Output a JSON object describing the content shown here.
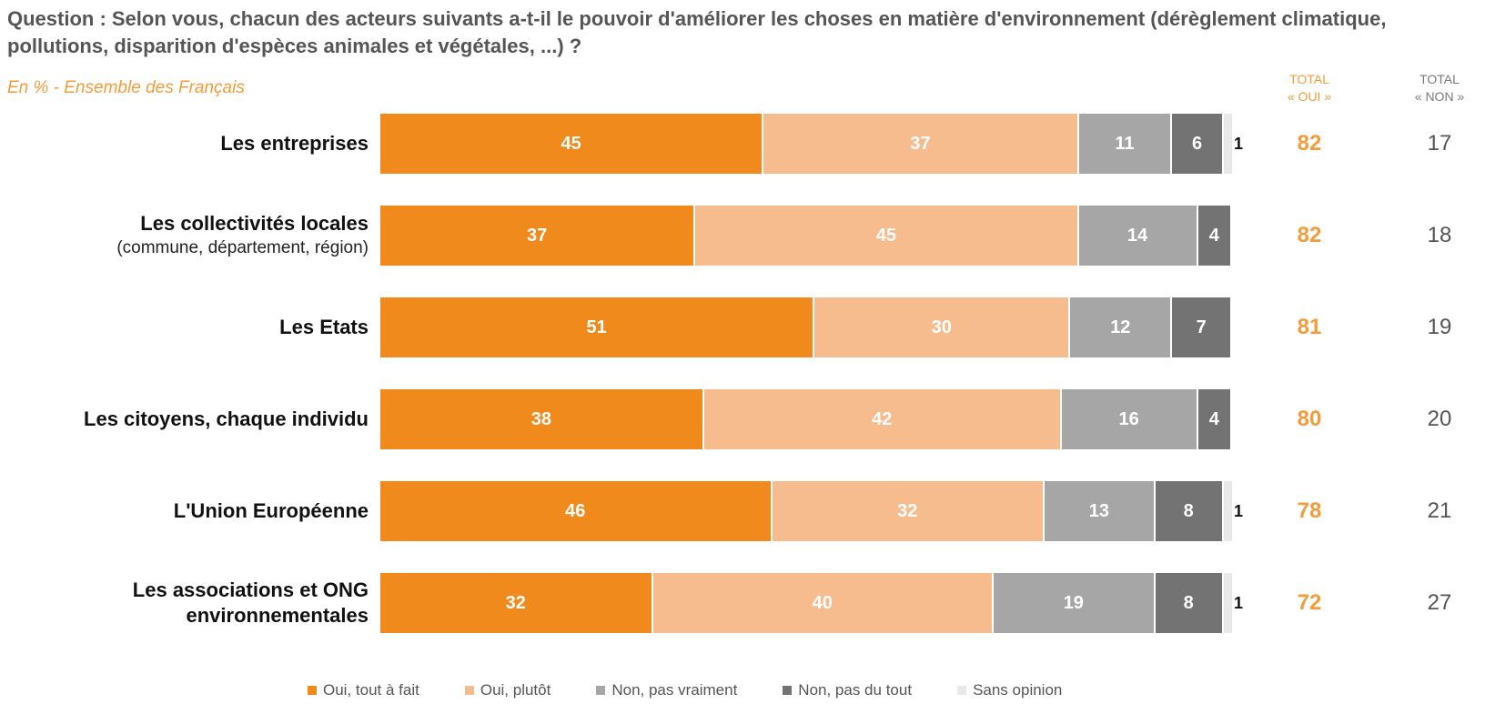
{
  "header": {
    "question": "Question : Selon vous, chacun des acteurs suivants a-t-il le pouvoir d'améliorer les choses en matière d'environnement (dérèglement climatique, pollutions, disparition d'espèces animales et végétales, ...) ?",
    "subtitle": "En % - Ensemble des Français",
    "total_oui_header": [
      "TOTAL",
      "« OUI »"
    ],
    "total_non_header": [
      "TOTAL",
      "« NON »"
    ]
  },
  "chart_data": {
    "type": "bar",
    "orientation": "horizontal",
    "stacked": true,
    "xlim": [
      0,
      100
    ],
    "categories": [
      {
        "label": "Les entreprises",
        "sublabel": ""
      },
      {
        "label": "Les collectivités locales",
        "sublabel": "(commune, département, région)"
      },
      {
        "label": "Les Etats",
        "sublabel": ""
      },
      {
        "label": "Les citoyens, chaque individu",
        "sublabel": ""
      },
      {
        "label": "L'Union Européenne",
        "sublabel": ""
      },
      {
        "label": "Les associations et ONG",
        "sublabel": "environnementales"
      }
    ],
    "series": [
      {
        "name": "Oui, tout à fait",
        "color": "#F08A1C",
        "values": [
          45,
          37,
          51,
          38,
          46,
          32
        ]
      },
      {
        "name": "Oui, plutôt",
        "color": "#F7BC8E",
        "values": [
          37,
          45,
          30,
          42,
          32,
          40
        ]
      },
      {
        "name": "Non, pas vraiment",
        "color": "#A6A6A6",
        "values": [
          11,
          14,
          12,
          16,
          13,
          19
        ]
      },
      {
        "name": "Non, pas du tout",
        "color": "#737373",
        "values": [
          6,
          4,
          7,
          4,
          8,
          8
        ]
      },
      {
        "name": "Sans opinion",
        "color": "#E8E8E8",
        "values": [
          1,
          0,
          0,
          0,
          1,
          1
        ]
      }
    ],
    "total_oui": [
      82,
      82,
      81,
      80,
      78,
      72
    ],
    "total_non": [
      17,
      18,
      19,
      20,
      21,
      27
    ],
    "legend_position": "bottom"
  }
}
